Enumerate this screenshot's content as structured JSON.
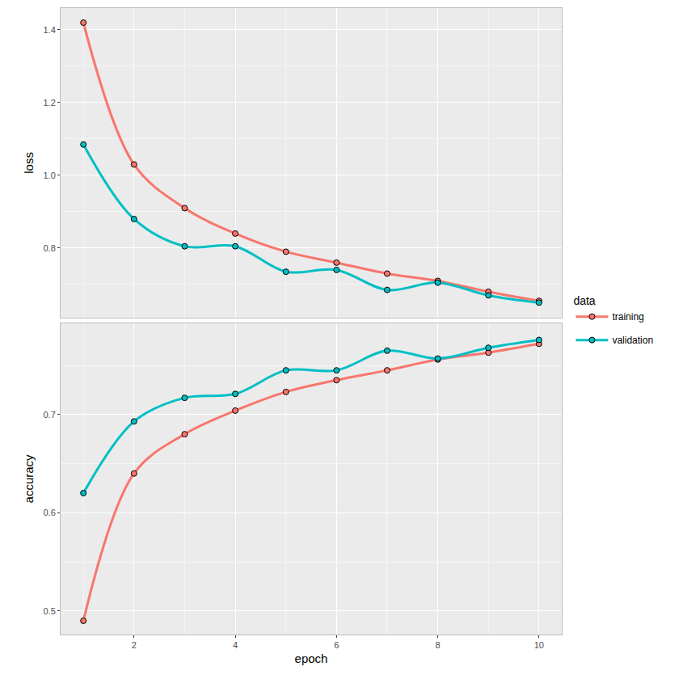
{
  "chart_data": [
    {
      "type": "line",
      "ylabel": "loss",
      "x": [
        1,
        2,
        3,
        4,
        5,
        6,
        7,
        8,
        9,
        10
      ],
      "xlim": [
        0.55,
        10.45
      ],
      "xticks": [
        2,
        4,
        6,
        8,
        10
      ],
      "ylim": [
        0.609,
        1.46
      ],
      "yticks": [
        {
          "value": 0.8,
          "label": "0.8"
        },
        {
          "value": 1.0,
          "label": "1.0"
        },
        {
          "value": 1.2,
          "label": "1.2"
        },
        {
          "value": 1.4,
          "label": "1.4"
        }
      ],
      "grid": true,
      "tick_labels": "y",
      "legend": "right",
      "legend_title": "data",
      "marker": "circle",
      "line_style": "smooth",
      "series": [
        {
          "name": "training",
          "color": "#F8766D",
          "values": [
            1.42,
            1.03,
            0.91,
            0.84,
            0.79,
            0.76,
            0.73,
            0.71,
            0.68,
            0.655
          ]
        },
        {
          "name": "validation",
          "color": "#00BFC4",
          "values": [
            1.085,
            0.88,
            0.805,
            0.805,
            0.735,
            0.74,
            0.685,
            0.705,
            0.67,
            0.65
          ]
        }
      ]
    },
    {
      "type": "line",
      "ylabel": "accuracy",
      "xlabel": "epoch",
      "x": [
        1,
        2,
        3,
        4,
        5,
        6,
        7,
        8,
        9,
        10
      ],
      "xlim": [
        0.55,
        10.45
      ],
      "xticks": [
        2,
        4,
        6,
        8,
        10
      ],
      "ylim": [
        0.476,
        0.793
      ],
      "yticks": [
        0.5,
        0.6,
        0.7
      ],
      "grid": true,
      "marker": "circle",
      "line_style": "smooth",
      "series": [
        {
          "name": "training",
          "color": "#F8766D",
          "values": [
            0.49,
            0.64,
            0.68,
            0.704,
            0.723,
            0.735,
            0.745,
            0.756,
            0.763,
            0.772
          ]
        },
        {
          "name": "validation",
          "color": "#00BFC4",
          "values": [
            0.62,
            0.693,
            0.717,
            0.721,
            0.745,
            0.745,
            0.765,
            0.757,
            0.768,
            0.776
          ]
        }
      ]
    }
  ]
}
